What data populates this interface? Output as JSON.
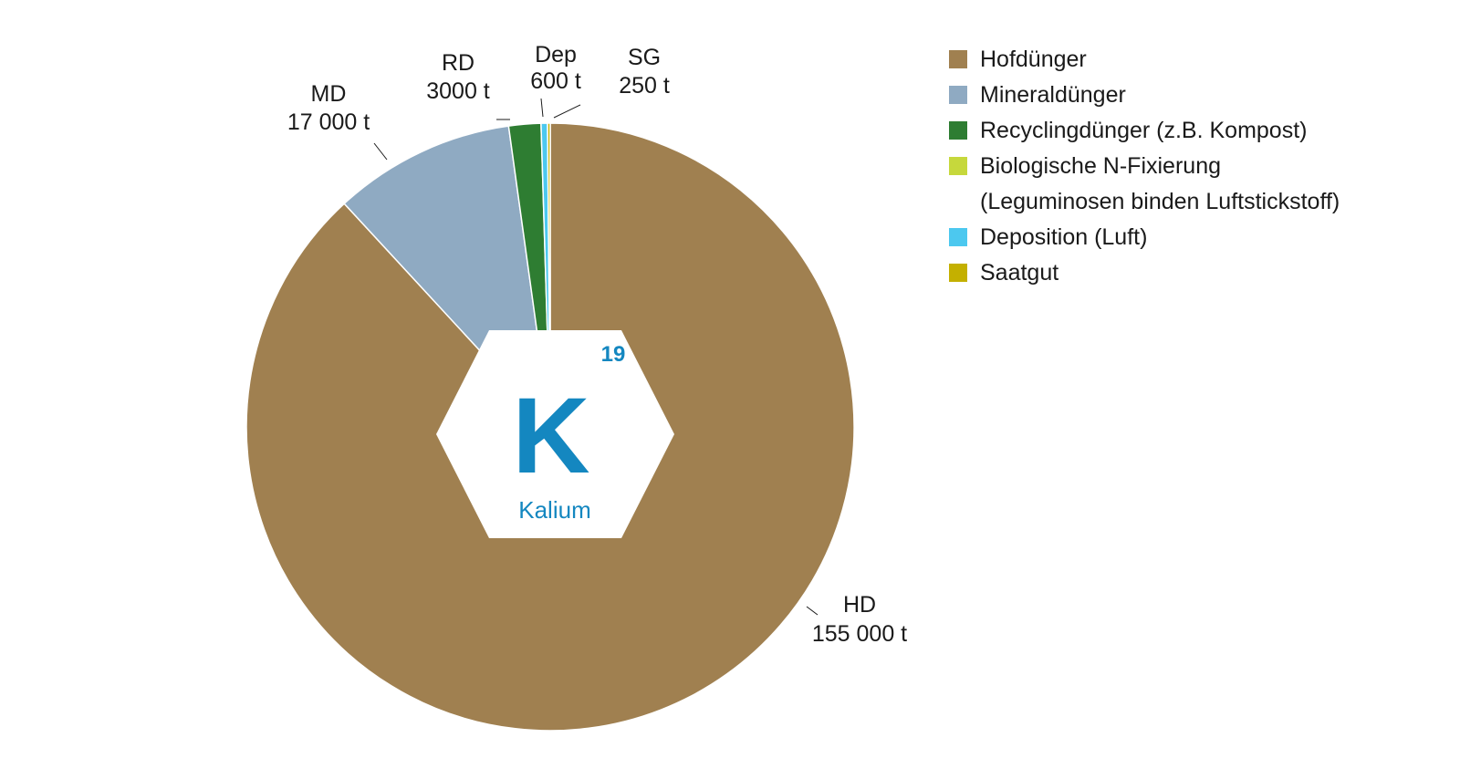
{
  "chart_data": {
    "type": "pie",
    "series": [
      {
        "name": "Hofdünger",
        "color": "#a08050"
      },
      {
        "name": "Mineraldünger",
        "color": "#8faac2"
      },
      {
        "name": "Recyclingdünger (z.B. Kompost)",
        "color": "#2e7d32"
      },
      {
        "name": "Biologische N-Fixierung\n(Leguminosen binden Luftstickstoff)",
        "color": "#c6d83c"
      },
      {
        "name": "Deposition (Luft)",
        "color": "#4cc8ef"
      },
      {
        "name": "Saatgut",
        "color": "#c4b000"
      }
    ],
    "values": [
      155000,
      17000,
      3000,
      0,
      600,
      250
    ],
    "short_labels": [
      "HD",
      "MD",
      "RD",
      null,
      "Dep",
      "SG"
    ],
    "value_labels": [
      "155 000 t",
      "17 000 t",
      "3000 t",
      null,
      "600 t",
      "250 t"
    ],
    "element": {
      "number": 19,
      "symbol": "K",
      "name": "Kalium"
    },
    "legend": "top-right"
  }
}
